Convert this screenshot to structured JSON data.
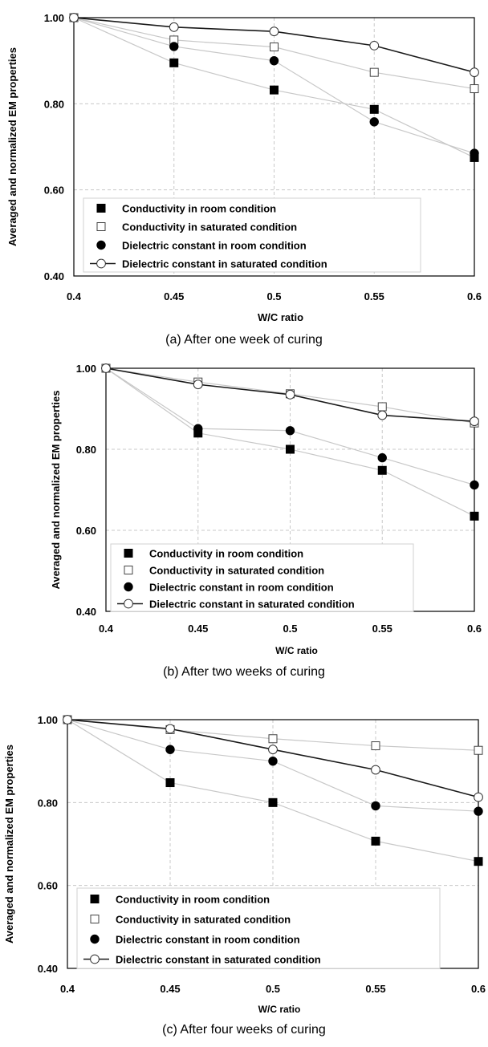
{
  "legend": [
    "Conductivity in room condition",
    "Conductivity in saturated condition",
    "Dielectric constant in room condition",
    "Dielectric constant in saturated condition"
  ],
  "colors": {
    "dark_line": "#1a1a1a",
    "light_line": "#c8c8c8",
    "grid": "#c8c8c8",
    "marker_fill_dark": "#000000",
    "marker_fill_open": "#ffffff"
  },
  "chart_data": [
    {
      "type": "line",
      "caption": "(a) After one week of curing",
      "xlabel": "W/C ratio",
      "ylabel": "Averaged and normalized EM properties",
      "x": [
        0.4,
        0.45,
        0.5,
        0.55,
        0.6
      ],
      "x_tick_labels": [
        "0.4",
        "0.45",
        "0.5",
        "0.55",
        "0.6"
      ],
      "y_tick_labels": [
        "0.40",
        "0.60",
        "0.80",
        "1.00"
      ],
      "xlim": [
        0.4,
        0.6
      ],
      "ylim": [
        0.4,
        1.0
      ],
      "grid": true,
      "legend_position": "bottom-left",
      "series": [
        {
          "name": "Conductivity in room condition",
          "marker": "filled-square",
          "values": [
            1.0,
            0.895,
            0.832,
            0.787,
            0.675
          ]
        },
        {
          "name": "Conductivity in saturated condition",
          "marker": "open-square",
          "values": [
            1.0,
            0.948,
            0.932,
            0.873,
            0.835
          ]
        },
        {
          "name": "Dielectric constant in room condition",
          "marker": "filled-circle",
          "values": [
            1.0,
            0.933,
            0.9,
            0.758,
            0.685
          ]
        },
        {
          "name": "Dielectric constant in saturated condition",
          "marker": "open-circle",
          "values": [
            1.0,
            0.978,
            0.968,
            0.935,
            0.873
          ]
        }
      ]
    },
    {
      "type": "line",
      "caption": "(b) After two weeks of curing",
      "xlabel": "W/C ratio",
      "ylabel": "Averaged and normalized EM properties",
      "x": [
        0.4,
        0.45,
        0.5,
        0.55,
        0.6
      ],
      "x_tick_labels": [
        "0.4",
        "0.45",
        "0.5",
        "0.55",
        "0.6"
      ],
      "y_tick_labels": [
        "0.40",
        "0.60",
        "0.80",
        "1.00"
      ],
      "xlim": [
        0.4,
        0.6
      ],
      "ylim": [
        0.4,
        1.0
      ],
      "grid": true,
      "legend_position": "bottom-left",
      "series": [
        {
          "name": "Conductivity in room condition",
          "marker": "filled-square",
          "values": [
            1.0,
            0.84,
            0.8,
            0.748,
            0.635
          ]
        },
        {
          "name": "Conductivity in saturated condition",
          "marker": "open-square",
          "values": [
            1.0,
            0.966,
            0.937,
            0.905,
            0.865
          ]
        },
        {
          "name": "Dielectric constant in room condition",
          "marker": "filled-circle",
          "values": [
            1.0,
            0.851,
            0.846,
            0.779,
            0.712
          ]
        },
        {
          "name": "Dielectric constant in saturated condition",
          "marker": "open-circle",
          "values": [
            1.0,
            0.96,
            0.935,
            0.884,
            0.869
          ]
        }
      ]
    },
    {
      "type": "line",
      "caption": "(c) After four weeks of curing",
      "xlabel": "W/C ratio",
      "ylabel": "Averaged and normalized EM properties",
      "x": [
        0.4,
        0.45,
        0.5,
        0.55,
        0.6
      ],
      "x_tick_labels": [
        "0.4",
        "0.45",
        "0.5",
        "0.55",
        "0.6"
      ],
      "y_tick_labels": [
        "0.40",
        "0.60",
        "0.80",
        "1.00"
      ],
      "xlim": [
        0.4,
        0.6
      ],
      "ylim": [
        0.4,
        1.0
      ],
      "grid": true,
      "legend_position": "bottom-left",
      "series": [
        {
          "name": "Conductivity in room condition",
          "marker": "filled-square",
          "values": [
            1.0,
            0.848,
            0.8,
            0.707,
            0.658
          ]
        },
        {
          "name": "Conductivity in saturated condition",
          "marker": "open-square",
          "values": [
            1.0,
            0.976,
            0.954,
            0.937,
            0.926
          ]
        },
        {
          "name": "Dielectric constant in room condition",
          "marker": "filled-circle",
          "values": [
            1.0,
            0.928,
            0.9,
            0.792,
            0.779
          ]
        },
        {
          "name": "Dielectric constant in saturated condition",
          "marker": "open-circle",
          "values": [
            1.0,
            0.978,
            0.928,
            0.879,
            0.813
          ]
        }
      ]
    }
  ]
}
